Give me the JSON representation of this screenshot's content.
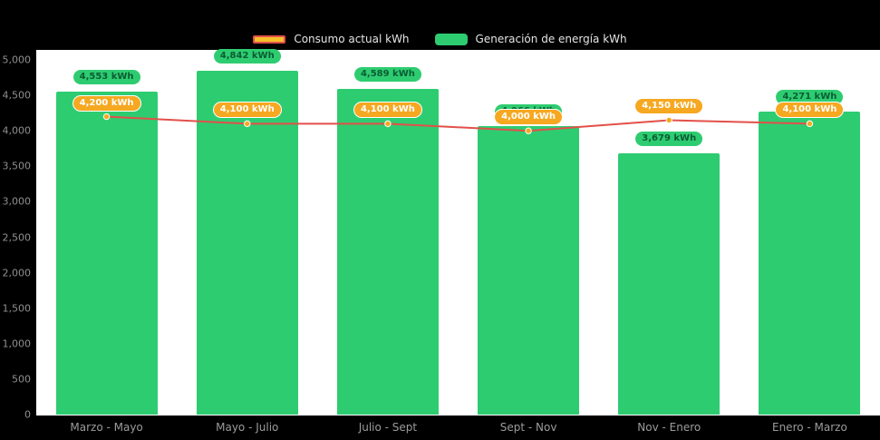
{
  "legend": {
    "items": [
      {
        "label": "Consumo actual kWh"
      },
      {
        "label": "Generación de energía kWh"
      }
    ]
  },
  "colors": {
    "page_bg": "#000000",
    "plot_bg": "#ffffff",
    "bar": "#2ecc71",
    "line": "#e2504a",
    "point_fill": "#f6a821",
    "bar_label_bg": "#2ecc71",
    "bar_label_text": "#0b5c33",
    "line_label_bg": "#f6a821",
    "line_label_text": "#ffffff",
    "axis_text": "#8f8f8f"
  },
  "chart_data": {
    "type": "bar",
    "subtype": "bar-line-combo",
    "title": "",
    "xlabel": "",
    "ylabel": "",
    "categories": [
      "Marzo - Mayo",
      "Mayo - Julio",
      "Julio - Sept",
      "Sept - Nov",
      "Nov - Enero",
      "Enero - Marzo"
    ],
    "series": [
      {
        "name": "Generación de energía kWh",
        "kind": "bar",
        "color": "#2ecc71",
        "values": [
          4553,
          4842,
          4589,
          4066,
          3679,
          4271
        ],
        "labels": [
          "4,553 kWh",
          "4,842 kWh",
          "4,589 kWh",
          "4,066 kWh",
          "3,679 kWh",
          "4,271 kWh"
        ]
      },
      {
        "name": "Consumo actual kWh",
        "kind": "line",
        "color": "#e2504a",
        "values": [
          4200,
          4100,
          4100,
          4000,
          4150,
          4100
        ],
        "labels": [
          "4,200 kWh",
          "4,100 kWh",
          "4,100 kWh",
          "4,000 kWh",
          "4,150 kWh",
          "4,100 kWh"
        ]
      }
    ],
    "ylim": [
      0,
      5000
    ],
    "yticks": [
      {
        "v": 0,
        "label": "0"
      },
      {
        "v": 500,
        "label": "500"
      },
      {
        "v": 1000,
        "label": "1,000"
      },
      {
        "v": 1500,
        "label": "1,500"
      },
      {
        "v": 2000,
        "label": "2,000"
      },
      {
        "v": 2500,
        "label": "2,500"
      },
      {
        "v": 3000,
        "label": "3,000"
      },
      {
        "v": 3500,
        "label": "3,500"
      },
      {
        "v": 4000,
        "label": "4,000"
      },
      {
        "v": 4500,
        "label": "4,500"
      },
      {
        "v": 5000,
        "label": "5,000"
      }
    ],
    "legend_position": "top",
    "grid": false
  }
}
